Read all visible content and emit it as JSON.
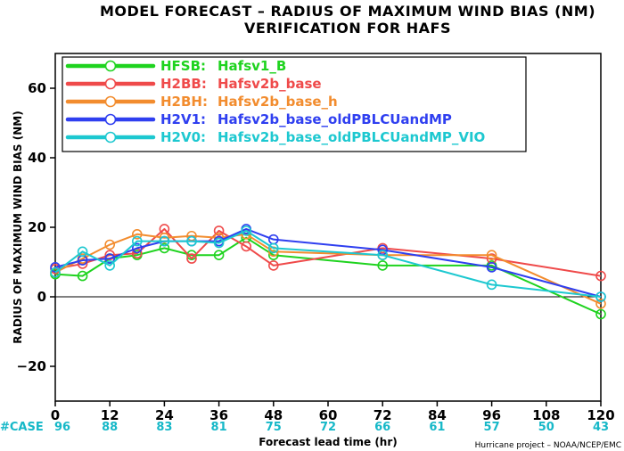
{
  "chart_data": {
    "type": "line",
    "title": "MODEL FORECAST – RADIUS OF MAXIMUM WIND BIAS (NM)",
    "subtitle": "VERIFICATION FOR HAFS",
    "xlabel": "Forecast lead time (hr)",
    "ylabel": "RADIUS OF MAXIMUM WIND BIAS (NM)",
    "xlim": [
      0,
      120
    ],
    "ylim": [
      -30,
      70
    ],
    "xticks": [
      0,
      12,
      24,
      36,
      48,
      60,
      72,
      84,
      96,
      108,
      120
    ],
    "yticks": [
      -20,
      0,
      20,
      40,
      60
    ],
    "ytick_labels": [
      "−20",
      "0",
      "20",
      "40",
      "60"
    ],
    "zero_line": true,
    "legend_position": "top-left",
    "case_label": "#CASE",
    "case_counts": [
      {
        "x": 0,
        "label": "96"
      },
      {
        "x": 12,
        "label": "88"
      },
      {
        "x": 24,
        "label": "83"
      },
      {
        "x": 36,
        "label": "81"
      },
      {
        "x": 48,
        "label": "75"
      },
      {
        "x": 60,
        "label": "72"
      },
      {
        "x": 72,
        "label": "66"
      },
      {
        "x": 84,
        "label": "61"
      },
      {
        "x": 96,
        "label": "57"
      },
      {
        "x": 108,
        "label": "50"
      },
      {
        "x": 120,
        "label": "43"
      }
    ],
    "credit": "Hurricane project – NOAA/NCEP/EMC",
    "x": [
      0,
      6,
      12,
      18,
      24,
      30,
      36,
      42,
      48,
      72,
      96,
      120
    ],
    "series": [
      {
        "name": "HFSB:",
        "desc": "Hafsv1_B",
        "color": "#1fd31f",
        "values": [
          6.5,
          6,
          11,
          12,
          14,
          12,
          12,
          17,
          12,
          9,
          9,
          -5
        ]
      },
      {
        "name": "H2BB:",
        "desc": "Hafsv2b_base",
        "color": "#ef4a4a",
        "values": [
          8,
          9.5,
          12,
          12.5,
          19.5,
          11,
          19,
          14.5,
          9,
          14,
          11,
          6
        ]
      },
      {
        "name": "H2BH:",
        "desc": "Hafsv2b_base_h",
        "color": "#f28c2e",
        "values": [
          7,
          11,
          15,
          18,
          17,
          17.5,
          17,
          18,
          13,
          12,
          12,
          -2
        ]
      },
      {
        "name": "H2V1:",
        "desc": "Hafsv2b_base_oldPBLCUandMP",
        "color": "#2f3ff0",
        "values": [
          8.5,
          10.5,
          11,
          14,
          16,
          16,
          16,
          19.5,
          16.5,
          13.5,
          8.5,
          0
        ]
      },
      {
        "name": "H2V0:",
        "desc": "Hafsv2b_base_oldPBLCUandMP_VIO",
        "color": "#1dc8d0",
        "values": [
          7,
          13,
          9,
          16,
          16,
          16,
          15.5,
          19,
          14,
          12,
          3.5,
          0
        ]
      }
    ]
  }
}
